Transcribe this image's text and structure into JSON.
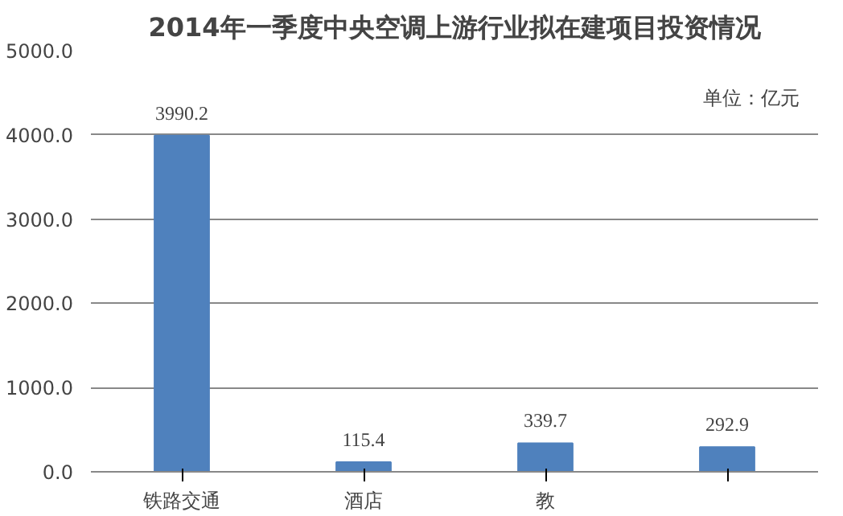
{
  "chart_data": {
    "type": "bar",
    "title": "2014年一季度中央空调上游行业拟在建项目投资情况",
    "categories": [
      "铁路交通",
      "酒店",
      "教",
      null
    ],
    "values": [
      3990.2,
      115.4,
      339.7,
      292.9
    ],
    "color": "#4f81bd",
    "ylim": [
      0,
      5000
    ],
    "yticks": [
      {
        "value": 0,
        "label": "0.0"
      },
      {
        "value": 1000,
        "label": "1000.0"
      },
      {
        "value": 2000,
        "label": "2000.0"
      },
      {
        "value": 3000,
        "label": "3000.0"
      },
      {
        "value": 4000,
        "label": "4000.0"
      },
      {
        "value": 5000,
        "label": "5000.0"
      }
    ],
    "grid": "y",
    "data_labels": true,
    "annotations": [
      "单位：亿元"
    ]
  }
}
